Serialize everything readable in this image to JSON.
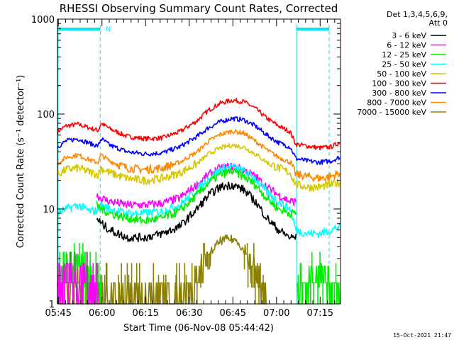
{
  "chart_data": {
    "type": "line",
    "title": "RHESSI Observing Summary Count Rates, Corrected",
    "xlabel": "Start Time (06-Nov-08 05:44:42)",
    "ylabel": "Corrected Count Rate (s⁻¹ detector⁻¹)",
    "y_scale": "log",
    "ylim": [
      1,
      1000
    ],
    "xlim": [
      "05:44:42",
      "07:22:00"
    ],
    "x_ticks": [
      "05:45",
      "06:00",
      "06:15",
      "06:30",
      "06:45",
      "07:00",
      "07:15"
    ],
    "x_tick_minutes": [
      0.3,
      15.3,
      30.3,
      45.3,
      60.3,
      75.3,
      90.3
    ],
    "y_ticks": [
      "1",
      "10",
      "100",
      "1000"
    ],
    "y_tick_values": [
      1,
      10,
      100,
      1000
    ],
    "grid": false,
    "legend_position": "right",
    "legend_header": [
      "Det 1,3,4,5,6,9,",
      "Att 0"
    ],
    "footer_date": "15-Oct-2021 21:47",
    "night_flag": "N",
    "series": [
      {
        "name": "3 - 6 keV",
        "color": "#000000"
      },
      {
        "name": "6 - 12 keV",
        "color": "#ff00ff"
      },
      {
        "name": "12 - 25 keV",
        "color": "#00ee00"
      },
      {
        "name": "25 - 50 keV",
        "color": "#00ffff"
      },
      {
        "name": "50 - 100 keV",
        "color": "#d4c800"
      },
      {
        "name": "100 - 300 keV",
        "color": "#ff0000"
      },
      {
        "name": "300 - 800 keV",
        "color": "#0000ff"
      },
      {
        "name": "800 - 7000 keV",
        "color": "#ff8800"
      },
      {
        "name": "7000 - 15000 keV",
        "color": "#8b8000"
      }
    ],
    "curves": [
      {
        "series": "100 - 300 keV",
        "t": [
          0,
          3,
          7,
          12,
          14,
          15,
          18,
          24,
          30,
          36,
          42,
          48,
          52,
          56,
          60,
          64,
          68,
          72,
          76,
          80,
          82,
          86,
          90,
          94,
          97
        ],
        "v": [
          65,
          75,
          78,
          70,
          67,
          80,
          70,
          58,
          55,
          56,
          65,
          85,
          110,
          130,
          140,
          135,
          115,
          90,
          75,
          65,
          48,
          46,
          44,
          45,
          50
        ]
      },
      {
        "series": "300 - 800 keV",
        "t": [
          0,
          3,
          7,
          12,
          14,
          15,
          18,
          24,
          30,
          36,
          42,
          48,
          52,
          56,
          60,
          64,
          68,
          72,
          76,
          80,
          82,
          86,
          90,
          94,
          97
        ],
        "v": [
          45,
          52,
          55,
          48,
          46,
          55,
          47,
          40,
          38,
          39,
          45,
          58,
          72,
          83,
          90,
          87,
          75,
          60,
          50,
          45,
          34,
          32,
          31,
          32,
          35
        ]
      },
      {
        "series": "800 - 7000 keV",
        "t": [
          0,
          3,
          7,
          12,
          14,
          15,
          18,
          24,
          30,
          36,
          42,
          48,
          52,
          56,
          60,
          64,
          68,
          72,
          76,
          80,
          82,
          86,
          90,
          94,
          97
        ],
        "v": [
          30,
          35,
          37,
          32,
          31,
          37,
          32,
          27,
          26,
          27,
          31,
          40,
          52,
          61,
          66,
          63,
          52,
          42,
          35,
          31,
          23,
          22,
          21,
          22,
          24
        ]
      },
      {
        "series": "50 - 100 keV",
        "t": [
          0,
          3,
          7,
          12,
          14,
          15,
          18,
          24,
          30,
          36,
          42,
          48,
          52,
          56,
          60,
          64,
          68,
          72,
          76,
          80,
          82,
          86,
          90,
          94,
          97
        ],
        "v": [
          23,
          26,
          27,
          24,
          23,
          27,
          24,
          21,
          20,
          21,
          24,
          30,
          38,
          44,
          47,
          45,
          38,
          31,
          27,
          24,
          18,
          17,
          17,
          18,
          19
        ]
      },
      {
        "series": "6 - 12 keV",
        "t": [
          13.5,
          15,
          18,
          24,
          30,
          36,
          42,
          48,
          52,
          56,
          60,
          64,
          68,
          72,
          76,
          80,
          82
        ],
        "v": [
          14,
          13,
          12,
          11,
          11,
          11.5,
          13,
          18,
          23,
          27,
          28,
          26,
          22,
          17,
          14,
          12,
          12
        ]
      },
      {
        "series": "25 - 50 keV",
        "t": [
          0,
          3,
          7,
          11,
          13.5,
          15,
          18,
          24,
          30,
          36,
          42,
          48,
          52,
          56,
          60,
          64,
          68,
          72,
          76,
          80,
          82,
          86,
          90,
          94,
          97
        ],
        "v": [
          9,
          10,
          11,
          9.5,
          9.5,
          11,
          10,
          9,
          9,
          9.5,
          11,
          16,
          21,
          26,
          28,
          25,
          21,
          15,
          12,
          10,
          6,
          5.5,
          5.5,
          6,
          6.5
        ]
      },
      {
        "series": "12 - 25 keV",
        "t": [
          13.5,
          15,
          18,
          24,
          30,
          36,
          42,
          48,
          52,
          56,
          60,
          64,
          68,
          72,
          76,
          80,
          82
        ],
        "v": [
          11,
          10,
          9,
          8,
          7.5,
          8,
          9.5,
          14,
          19,
          23,
          25,
          22,
          18,
          13,
          10,
          9,
          9
        ]
      },
      {
        "series": "3 - 6 keV",
        "t": [
          13.5,
          15,
          18,
          24,
          30,
          36,
          42,
          48,
          52,
          56,
          60,
          64,
          68,
          72,
          76,
          80,
          82
        ],
        "v": [
          8,
          7,
          6,
          5,
          5,
          5.5,
          6.5,
          10,
          14,
          17,
          18,
          16,
          12,
          8,
          6,
          5,
          5
        ]
      },
      {
        "series": "7000 - 15000 keV",
        "t": [
          0,
          3,
          6,
          9,
          12,
          14,
          15,
          44,
          47,
          50,
          53,
          56,
          58,
          60,
          62,
          64,
          67,
          70,
          72
        ],
        "v": [
          1.3,
          1.5,
          1.8,
          1.6,
          1.3,
          1.05,
          1,
          1,
          1.8,
          2.6,
          3.6,
          4.6,
          4.8,
          4.8,
          4.6,
          3.6,
          2.5,
          1.6,
          1
        ]
      },
      {
        "series": "12 - 25 keV",
        "t": [
          0,
          3,
          6,
          9,
          12,
          14,
          15
        ],
        "v": [
          1.8,
          2.5,
          2.8,
          2.4,
          1.9,
          1.6,
          1.3
        ]
      },
      {
        "series": "12 - 25 keV",
        "t": [
          82.5,
          85,
          88,
          91,
          94,
          97
        ],
        "v": [
          1.2,
          1.6,
          1.9,
          1.7,
          1.5,
          1.8
        ]
      },
      {
        "series": "6 - 12 keV",
        "t": [
          0,
          3,
          6,
          9,
          12,
          14.5
        ],
        "v": [
          1.5,
          1.8,
          1.9,
          1.7,
          1.5,
          1.2
        ]
      }
    ]
  }
}
